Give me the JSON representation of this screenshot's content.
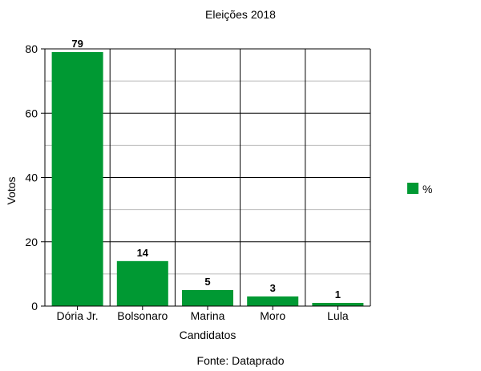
{
  "chart_data": {
    "type": "bar",
    "title": "Eleições 2018",
    "xlabel": "Candidatos",
    "ylabel": "Votos",
    "categories": [
      "Dória Jr.",
      "Bolsonaro",
      "Marina",
      "Moro",
      "Lula"
    ],
    "series": [
      {
        "name": "%",
        "values": [
          79,
          14,
          5,
          3,
          1
        ],
        "color": "#009933"
      }
    ],
    "ylim": [
      0,
      80
    ],
    "yticks": [
      0,
      20,
      40,
      60,
      80
    ],
    "grid": true,
    "legend": "right",
    "source": "Fonte: Dataprado"
  }
}
